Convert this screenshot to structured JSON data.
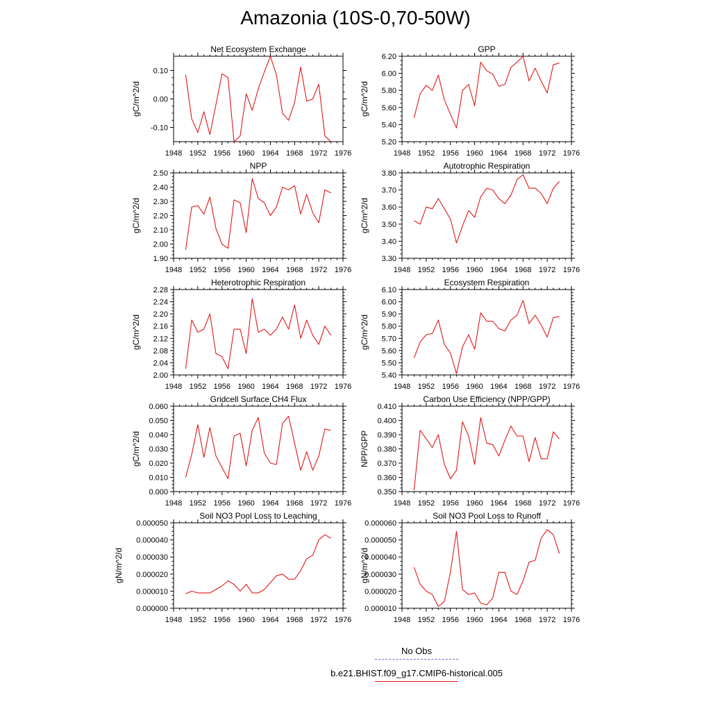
{
  "page": {
    "title": "Amazonia (10S-0,70-50W)"
  },
  "legend": {
    "items": [
      {
        "label": "No Obs",
        "color": "#6b6bd6",
        "style": "dashed"
      },
      {
        "label": "b.e21.BHIST.f09_g17.CMIP6-historical.005",
        "color": "#e01818",
        "style": "solid"
      }
    ]
  },
  "chart_data": [
    {
      "type": "line",
      "title": "Net Ecosystem Exchange",
      "ylabel": "gC/m^2/d",
      "xlim": [
        1948,
        1976
      ],
      "ylim": [
        -0.15,
        0.15
      ],
      "xticks": [
        1948,
        1952,
        1956,
        1960,
        1964,
        1968,
        1972,
        1976
      ],
      "yticks": [
        -0.1,
        0.0,
        0.1
      ],
      "ytick_labels": [
        "-0.10",
        "0.00",
        "0.10"
      ],
      "x": [
        1950,
        1951,
        1952,
        1953,
        1954,
        1955,
        1956,
        1957,
        1958,
        1959,
        1960,
        1961,
        1962,
        1963,
        1964,
        1965,
        1966,
        1967,
        1968,
        1969,
        1970,
        1971,
        1972,
        1973,
        1974
      ],
      "series": [
        {
          "color": "#e01818",
          "values": [
            0.085,
            -0.07,
            -0.118,
            -0.045,
            -0.125,
            -0.02,
            0.088,
            0.075,
            -0.15,
            -0.13,
            0.018,
            -0.04,
            0.035,
            0.095,
            0.15,
            0.085,
            -0.05,
            -0.075,
            -0.012,
            0.112,
            -0.008,
            0.0,
            0.052,
            -0.13,
            -0.15
          ]
        }
      ]
    },
    {
      "type": "line",
      "title": "GPP",
      "ylabel": "gC/m^2/d",
      "xlim": [
        1948,
        1976
      ],
      "ylim": [
        5.2,
        6.2
      ],
      "xticks": [
        1948,
        1952,
        1956,
        1960,
        1964,
        1968,
        1972,
        1976
      ],
      "yticks": [
        5.2,
        5.4,
        5.6,
        5.8,
        6.0,
        6.2
      ],
      "ytick_labels": [
        "5.20",
        "5.40",
        "5.60",
        "5.80",
        "6.00",
        "6.20"
      ],
      "x": [
        1950,
        1951,
        1952,
        1953,
        1954,
        1955,
        1956,
        1957,
        1958,
        1959,
        1960,
        1961,
        1962,
        1963,
        1964,
        1965,
        1966,
        1967,
        1968,
        1969,
        1970,
        1971,
        1972,
        1973,
        1974
      ],
      "series": [
        {
          "color": "#e01818",
          "values": [
            5.48,
            5.76,
            5.86,
            5.8,
            5.98,
            5.69,
            5.52,
            5.36,
            5.8,
            5.87,
            5.62,
            6.13,
            6.03,
            5.99,
            5.85,
            5.87,
            6.07,
            6.13,
            6.2,
            5.91,
            6.06,
            5.91,
            5.77,
            6.1,
            6.12
          ]
        }
      ]
    },
    {
      "type": "line",
      "title": "NPP",
      "ylabel": "gC/m^2/d",
      "xlim": [
        1948,
        1976
      ],
      "ylim": [
        1.9,
        2.5
      ],
      "xticks": [
        1948,
        1952,
        1956,
        1960,
        1964,
        1968,
        1972,
        1976
      ],
      "yticks": [
        1.9,
        2.0,
        2.1,
        2.2,
        2.3,
        2.4,
        2.5
      ],
      "ytick_labels": [
        "1.90",
        "2.00",
        "2.10",
        "2.20",
        "2.30",
        "2.40",
        "2.50"
      ],
      "x": [
        1950,
        1951,
        1952,
        1953,
        1954,
        1955,
        1956,
        1957,
        1958,
        1959,
        1960,
        1961,
        1962,
        1963,
        1964,
        1965,
        1966,
        1967,
        1968,
        1969,
        1970,
        1971,
        1972,
        1973,
        1974
      ],
      "series": [
        {
          "color": "#e01818",
          "values": [
            1.96,
            2.26,
            2.27,
            2.21,
            2.33,
            2.11,
            2.0,
            1.97,
            2.31,
            2.29,
            2.08,
            2.46,
            2.32,
            2.29,
            2.2,
            2.26,
            2.4,
            2.38,
            2.41,
            2.21,
            2.35,
            2.22,
            2.15,
            2.38,
            2.36
          ]
        }
      ]
    },
    {
      "type": "line",
      "title": "Autotrophic Respiration",
      "ylabel": "gC/m^2/d",
      "xlim": [
        1948,
        1976
      ],
      "ylim": [
        3.3,
        3.8
      ],
      "xticks": [
        1948,
        1952,
        1956,
        1960,
        1964,
        1968,
        1972,
        1976
      ],
      "yticks": [
        3.3,
        3.4,
        3.5,
        3.6,
        3.7,
        3.8
      ],
      "ytick_labels": [
        "3.30",
        "3.40",
        "3.50",
        "3.60",
        "3.70",
        "3.80"
      ],
      "x": [
        1950,
        1951,
        1952,
        1953,
        1954,
        1955,
        1956,
        1957,
        1958,
        1959,
        1960,
        1961,
        1962,
        1963,
        1964,
        1965,
        1966,
        1967,
        1968,
        1969,
        1970,
        1971,
        1972,
        1973,
        1974
      ],
      "series": [
        {
          "color": "#e01818",
          "values": [
            3.52,
            3.5,
            3.6,
            3.59,
            3.65,
            3.59,
            3.53,
            3.39,
            3.49,
            3.58,
            3.54,
            3.66,
            3.71,
            3.7,
            3.65,
            3.62,
            3.67,
            3.76,
            3.79,
            3.71,
            3.71,
            3.68,
            3.62,
            3.71,
            3.75
          ]
        }
      ]
    },
    {
      "type": "line",
      "title": "Heterotrophic Respiration",
      "ylabel": "gC/m^2/d",
      "xlim": [
        1948,
        1976
      ],
      "ylim": [
        2.0,
        2.28
      ],
      "xticks": [
        1948,
        1952,
        1956,
        1960,
        1964,
        1968,
        1972,
        1976
      ],
      "yticks": [
        2.0,
        2.04,
        2.08,
        2.12,
        2.16,
        2.2,
        2.24,
        2.28
      ],
      "ytick_labels": [
        "2.00",
        "2.04",
        "2.08",
        "2.12",
        "2.16",
        "2.20",
        "2.24",
        "2.28"
      ],
      "x": [
        1950,
        1951,
        1952,
        1953,
        1954,
        1955,
        1956,
        1957,
        1958,
        1959,
        1960,
        1961,
        1962,
        1963,
        1964,
        1965,
        1966,
        1967,
        1968,
        1969,
        1970,
        1971,
        1972,
        1973,
        1974
      ],
      "series": [
        {
          "color": "#e01818",
          "values": [
            2.02,
            2.18,
            2.14,
            2.15,
            2.2,
            2.07,
            2.06,
            2.02,
            2.15,
            2.15,
            2.07,
            2.25,
            2.14,
            2.15,
            2.13,
            2.15,
            2.19,
            2.15,
            2.23,
            2.12,
            2.18,
            2.13,
            2.1,
            2.16,
            2.13
          ]
        }
      ]
    },
    {
      "type": "line",
      "title": "Ecosystem Respiration",
      "ylabel": "gC/m^2/d",
      "xlim": [
        1948,
        1976
      ],
      "ylim": [
        5.4,
        6.1
      ],
      "xticks": [
        1948,
        1952,
        1956,
        1960,
        1964,
        1968,
        1972,
        1976
      ],
      "yticks": [
        5.4,
        5.5,
        5.6,
        5.7,
        5.8,
        5.9,
        6.0,
        6.1
      ],
      "ytick_labels": [
        "5.40",
        "5.50",
        "5.60",
        "5.70",
        "5.80",
        "5.90",
        "6.00",
        "6.10"
      ],
      "x": [
        1950,
        1951,
        1952,
        1953,
        1954,
        1955,
        1956,
        1957,
        1958,
        1959,
        1960,
        1961,
        1962,
        1963,
        1964,
        1965,
        1966,
        1967,
        1968,
        1969,
        1970,
        1971,
        1972,
        1973,
        1974
      ],
      "series": [
        {
          "color": "#e01818",
          "values": [
            5.54,
            5.67,
            5.73,
            5.74,
            5.85,
            5.65,
            5.58,
            5.41,
            5.63,
            5.73,
            5.61,
            5.91,
            5.84,
            5.84,
            5.78,
            5.76,
            5.85,
            5.89,
            6.01,
            5.82,
            5.89,
            5.81,
            5.71,
            5.87,
            5.88
          ]
        }
      ]
    },
    {
      "type": "line",
      "title": "Gridcell Surface CH4 Flux",
      "ylabel": "gC/m^2/d",
      "xlim": [
        1948,
        1976
      ],
      "ylim": [
        0.0,
        0.06
      ],
      "xticks": [
        1948,
        1952,
        1956,
        1960,
        1964,
        1968,
        1972,
        1976
      ],
      "yticks": [
        0.0,
        0.01,
        0.02,
        0.03,
        0.04,
        0.05,
        0.06
      ],
      "ytick_labels": [
        "0.000",
        "0.010",
        "0.020",
        "0.030",
        "0.040",
        "0.050",
        "0.060"
      ],
      "x": [
        1950,
        1951,
        1952,
        1953,
        1954,
        1955,
        1956,
        1957,
        1958,
        1959,
        1960,
        1961,
        1962,
        1963,
        1964,
        1965,
        1966,
        1967,
        1968,
        1969,
        1970,
        1971,
        1972,
        1973,
        1974
      ],
      "series": [
        {
          "color": "#e01818",
          "values": [
            0.01,
            0.026,
            0.047,
            0.024,
            0.045,
            0.025,
            0.017,
            0.009,
            0.039,
            0.041,
            0.018,
            0.043,
            0.052,
            0.027,
            0.02,
            0.019,
            0.048,
            0.053,
            0.034,
            0.015,
            0.028,
            0.015,
            0.025,
            0.044,
            0.043
          ]
        }
      ]
    },
    {
      "type": "line",
      "title": "Carbon Use Efficiency (NPP/GPP)",
      "ylabel": "NPP/GPP",
      "xlim": [
        1948,
        1976
      ],
      "ylim": [
        0.35,
        0.41
      ],
      "xticks": [
        1948,
        1952,
        1956,
        1960,
        1964,
        1968,
        1972,
        1976
      ],
      "yticks": [
        0.35,
        0.36,
        0.37,
        0.38,
        0.39,
        0.4,
        0.41
      ],
      "ytick_labels": [
        "0.350",
        "0.360",
        "0.370",
        "0.380",
        "0.390",
        "0.400",
        "0.410"
      ],
      "x": [
        1950,
        1951,
        1952,
        1953,
        1954,
        1955,
        1956,
        1957,
        1958,
        1959,
        1960,
        1961,
        1962,
        1963,
        1964,
        1965,
        1966,
        1967,
        1968,
        1969,
        1970,
        1971,
        1972,
        1973,
        1974
      ],
      "series": [
        {
          "color": "#e01818",
          "values": [
            0.351,
            0.393,
            0.387,
            0.381,
            0.39,
            0.369,
            0.359,
            0.365,
            0.399,
            0.389,
            0.369,
            0.402,
            0.384,
            0.383,
            0.375,
            0.386,
            0.396,
            0.389,
            0.389,
            0.371,
            0.388,
            0.373,
            0.373,
            0.392,
            0.387
          ]
        }
      ]
    },
    {
      "type": "line",
      "title": "Soil NO3 Pool Loss to Leaching",
      "ylabel": "gN/m^2/d",
      "xlim": [
        1948,
        1976
      ],
      "ylim": [
        0.0,
        5e-05
      ],
      "xticks": [
        1948,
        1952,
        1956,
        1960,
        1964,
        1968,
        1972,
        1976
      ],
      "yticks": [
        0.0,
        1e-05,
        2e-05,
        3e-05,
        4e-05,
        5e-05
      ],
      "ytick_labels": [
        "0.000000",
        "0.000010",
        "0.000020",
        "0.000030",
        "0.000040",
        "0.000050"
      ],
      "x": [
        1950,
        1951,
        1952,
        1953,
        1954,
        1955,
        1956,
        1957,
        1958,
        1959,
        1960,
        1961,
        1962,
        1963,
        1964,
        1965,
        1966,
        1967,
        1968,
        1969,
        1970,
        1971,
        1972,
        1973,
        1974
      ],
      "series": [
        {
          "color": "#e01818",
          "values": [
            8.5e-06,
            1e-05,
            9e-06,
            9e-06,
            9e-06,
            1.1e-05,
            1.3e-05,
            1.6e-05,
            1.4e-05,
            1e-05,
            1.4e-05,
            9e-06,
            9e-06,
            1.1e-05,
            1.5e-05,
            1.9e-05,
            2e-05,
            1.7e-05,
            1.7e-05,
            2.2e-05,
            2.9e-05,
            3.1e-05,
            4e-05,
            4.3e-05,
            4.1e-05
          ]
        }
      ]
    },
    {
      "type": "line",
      "title": "Soil NO3 Pool Loss to Runoff",
      "ylabel": "gN/m^2/d",
      "xlim": [
        1948,
        1976
      ],
      "ylim": [
        1e-05,
        6e-05
      ],
      "xticks": [
        1948,
        1952,
        1956,
        1960,
        1964,
        1968,
        1972,
        1976
      ],
      "yticks": [
        1e-05,
        2e-05,
        3e-05,
        4e-05,
        5e-05,
        6e-05
      ],
      "ytick_labels": [
        "0.000010",
        "0.000020",
        "0.000030",
        "0.000040",
        "0.000050",
        "0.000060"
      ],
      "x": [
        1950,
        1951,
        1952,
        1953,
        1954,
        1955,
        1956,
        1957,
        1958,
        1959,
        1960,
        1961,
        1962,
        1963,
        1964,
        1965,
        1966,
        1967,
        1968,
        1969,
        1970,
        1971,
        1972,
        1973,
        1974
      ],
      "series": [
        {
          "color": "#e01818",
          "values": [
            3.4e-05,
            2.4e-05,
            2e-05,
            1.8e-05,
            1.1e-05,
            1.4e-05,
            3.1e-05,
            5.5e-05,
            2.1e-05,
            1.8e-05,
            1.9e-05,
            1.3e-05,
            1.2e-05,
            1.6e-05,
            3.1e-05,
            3.1e-05,
            2e-05,
            1.8e-05,
            2.6e-05,
            3.7e-05,
            3.8e-05,
            5.1e-05,
            5.6e-05,
            5.3e-05,
            4.2e-05
          ]
        }
      ]
    }
  ]
}
